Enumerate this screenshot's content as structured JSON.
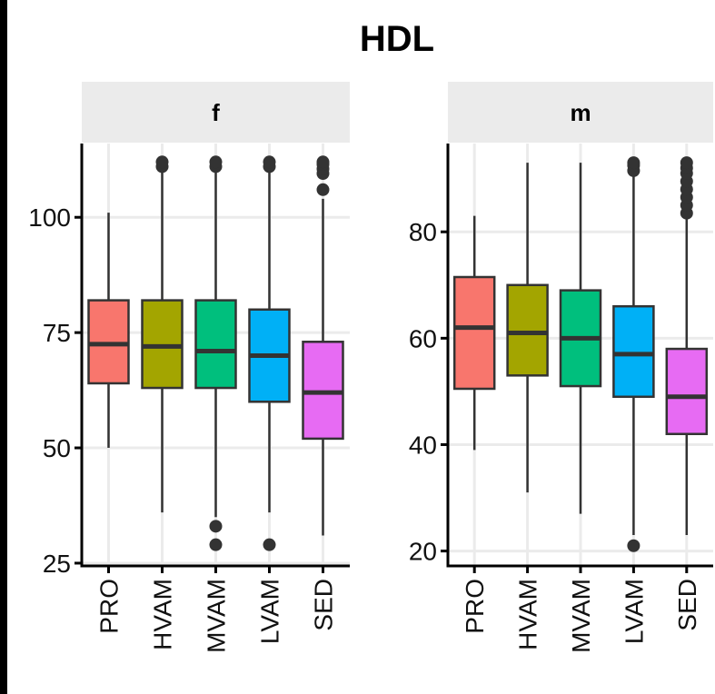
{
  "chart_data": {
    "type": "boxplot",
    "title": "HDL",
    "xlabel": "",
    "ylabel": "",
    "grid": true,
    "legend": "none",
    "categories": [
      "PRO",
      "HVAM",
      "MVAM",
      "LVAM",
      "SED"
    ],
    "colors": [
      "#F8766D",
      "#A3A500",
      "#00BF7D",
      "#00B0F6",
      "#E76BF3"
    ],
    "panels": [
      {
        "label": "f",
        "ylim": [
          24.4,
          116
        ],
        "yticks": [
          25,
          50,
          75,
          100
        ],
        "boxes": [
          {
            "category": "PRO",
            "whisker_low": 50,
            "q1": 64,
            "median": 72.5,
            "q3": 82,
            "whisker_high": 101,
            "outliers": []
          },
          {
            "category": "HVAM",
            "whisker_low": 36,
            "q1": 63,
            "median": 72,
            "q3": 82,
            "whisker_high": 110,
            "outliers": [
              111,
              112
            ]
          },
          {
            "category": "MVAM",
            "whisker_low": 35,
            "q1": 63,
            "median": 71,
            "q3": 82,
            "whisker_high": 110,
            "outliers": [
              111,
              112,
              33,
              29
            ]
          },
          {
            "category": "LVAM",
            "whisker_low": 36,
            "q1": 60,
            "median": 70,
            "q3": 80,
            "whisker_high": 110,
            "outliers": [
              111,
              112,
              29
            ]
          },
          {
            "category": "SED",
            "whisker_low": 31,
            "q1": 52,
            "median": 62,
            "q3": 73,
            "whisker_high": 104,
            "outliers": [
              106,
              109.5,
              110.5,
              111.5,
              112
            ]
          }
        ]
      },
      {
        "label": "m",
        "ylim": [
          17.2,
          96.6
        ],
        "yticks": [
          20,
          40,
          60,
          80
        ],
        "boxes": [
          {
            "category": "PRO",
            "whisker_low": 39,
            "q1": 50.5,
            "median": 62,
            "q3": 71.5,
            "whisker_high": 83,
            "outliers": []
          },
          {
            "category": "HVAM",
            "whisker_low": 31,
            "q1": 53,
            "median": 61,
            "q3": 70,
            "whisker_high": 93,
            "outliers": []
          },
          {
            "category": "MVAM",
            "whisker_low": 27,
            "q1": 51,
            "median": 60,
            "q3": 69,
            "whisker_high": 93,
            "outliers": []
          },
          {
            "category": "LVAM",
            "whisker_low": 23,
            "q1": 49,
            "median": 57,
            "q3": 66,
            "whisker_high": 91,
            "outliers": [
              91.5,
              92.5,
              93,
              21
            ]
          },
          {
            "category": "SED",
            "whisker_low": 23,
            "q1": 42,
            "median": 49,
            "q3": 58,
            "whisker_high": 82.5,
            "outliers": [
              83.5,
              85,
              86.5,
              88,
              89.5,
              91,
              92,
              93
            ]
          }
        ]
      }
    ]
  }
}
